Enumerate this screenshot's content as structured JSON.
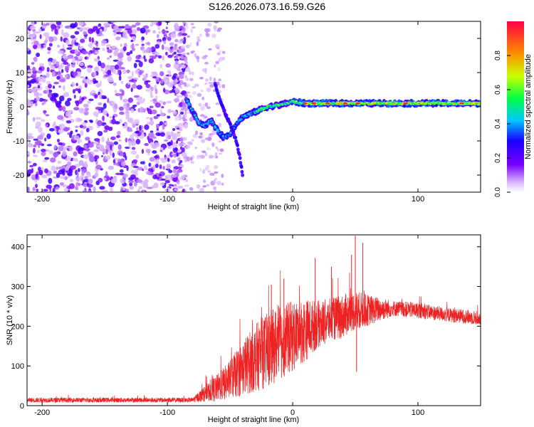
{
  "title": "S126.2026.073.16.59.G26",
  "colors": {
    "snr_line": "#ee2222",
    "colormap": [
      "#ffffff",
      "#8a00ff",
      "#2200ff",
      "#00ccff",
      "#00ff44",
      "#ccff00",
      "#ff8800",
      "#ff0044"
    ]
  },
  "chart_data": [
    {
      "type": "heatmap",
      "title": "",
      "xlabel": "Height of straight line (km)",
      "ylabel": "Frequency (Hz)",
      "xlim": [
        -212,
        150
      ],
      "ylim": [
        -25,
        25
      ],
      "xticks": [
        -200,
        -100,
        0,
        100
      ],
      "xtick_labels": [
        "-200",
        "-100",
        "0",
        "100"
      ],
      "yticks": [
        -20,
        -10,
        0,
        10,
        20
      ],
      "ytick_labels": [
        "-20",
        "-10",
        "0",
        "10",
        "20"
      ],
      "colorbar": {
        "label": "Normalized spectral amplitude",
        "range": [
          0,
          1
        ],
        "ticks": [
          0,
          0.2,
          0.4,
          0.6,
          0.8
        ],
        "tick_labels": [
          "0.0",
          "0.2",
          "0.4",
          "0.6",
          "0.8"
        ]
      },
      "features": {
        "noise_region_x": [
          -212,
          -85
        ],
        "fading_region_x": [
          -95,
          -55
        ],
        "carrier_track": [
          {
            "x": -85,
            "f": 2.5
          },
          {
            "x": -80,
            "f": -1.5
          },
          {
            "x": -75,
            "f": -4.5
          },
          {
            "x": -70,
            "f": -5.5
          },
          {
            "x": -65,
            "f": -4
          },
          {
            "x": -60,
            "f": -7
          },
          {
            "x": -55,
            "f": -9
          },
          {
            "x": -50,
            "f": -8
          },
          {
            "x": -45,
            "f": -5
          },
          {
            "x": -40,
            "f": -3
          },
          {
            "x": -30,
            "f": -1.5
          },
          {
            "x": -20,
            "f": 0
          },
          {
            "x": -10,
            "f": 0.5
          },
          {
            "x": 0,
            "f": 1.5
          },
          {
            "x": 10,
            "f": 1
          },
          {
            "x": 150,
            "f": 1
          }
        ],
        "secondary_branch": [
          {
            "x": -62,
            "f": 7
          },
          {
            "x": -58,
            "f": 2
          },
          {
            "x": -55,
            "f": -1
          },
          {
            "x": -50,
            "f": -5
          },
          {
            "x": -45,
            "f": -10
          },
          {
            "x": -42,
            "f": -15
          },
          {
            "x": -40,
            "f": -20
          }
        ]
      }
    },
    {
      "type": "line",
      "title": "",
      "xlabel": "Height of straight line (km)",
      "ylabel": "SNR (10 * v/v)",
      "xlim": [
        -212,
        150
      ],
      "ylim": [
        0,
        430
      ],
      "xticks": [
        -200,
        -100,
        0,
        100
      ],
      "xtick_labels": [
        "-200",
        "-100",
        "0",
        "100"
      ],
      "yticks": [
        0,
        100,
        200,
        300,
        400
      ],
      "ytick_labels": [
        "0",
        "100",
        "200",
        "300",
        "400"
      ],
      "series": [
        {
          "name": "SNR",
          "x_range": [
            -212,
            150
          ],
          "envelope": {
            "x": [
              -212,
              -80,
              -70,
              -60,
              -50,
              -40,
              -30,
              -20,
              -10,
              0,
              10,
              20,
              30,
              40,
              50,
              60,
              80,
              100,
              120,
              150
            ],
            "mean": [
              14,
              14,
              30,
              45,
              65,
              95,
              120,
              140,
              160,
              175,
              190,
              205,
              215,
              225,
              240,
              240,
              245,
              240,
              230,
              220
            ],
            "spread": [
              6,
              6,
              20,
              35,
              50,
              70,
              85,
              95,
              95,
              90,
              80,
              60,
              55,
              55,
              50,
              40,
              20,
              20,
              18,
              18
            ]
          },
          "spikes": [
            {
              "x": -17,
              "y": 305
            },
            {
              "x": -7,
              "y": 320
            },
            {
              "x": 18,
              "y": 372
            },
            {
              "x": 31,
              "y": 350
            },
            {
              "x": 47,
              "y": 380
            },
            {
              "x": 50,
              "y": 428
            },
            {
              "x": 56,
              "y": 410
            },
            {
              "x": 51,
              "y": 85
            }
          ]
        }
      ]
    }
  ]
}
